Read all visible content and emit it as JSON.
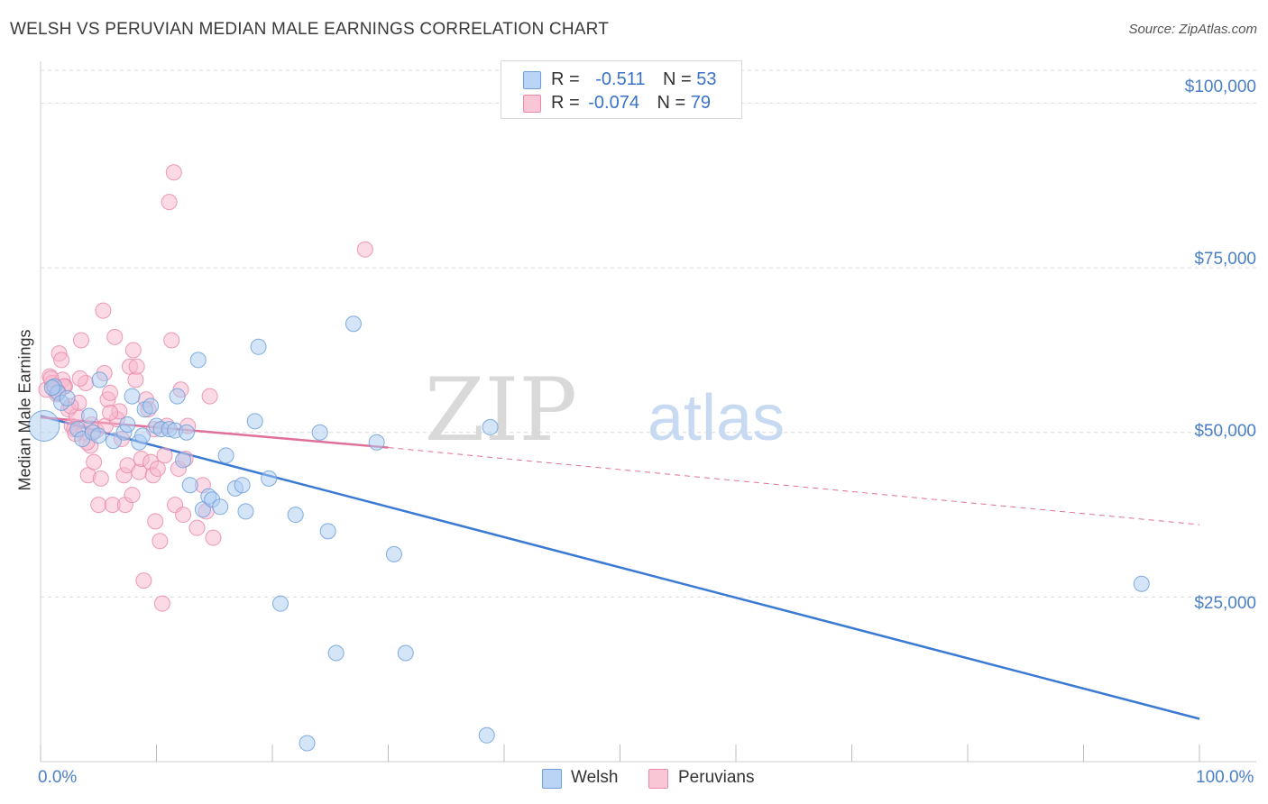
{
  "title": "WELSH VS PERUVIAN MEDIAN MALE EARNINGS CORRELATION CHART",
  "source": "Source: ZipAtlas.com",
  "watermark": {
    "zip": "ZIP",
    "atlas": "atlas"
  },
  "legend": {
    "welsh": {
      "r_label": "R =",
      "r_value": "-0.511",
      "n_label": "N =",
      "n_value": "53"
    },
    "peruvian": {
      "r_label": "R =",
      "r_value": "-0.074",
      "n_label": "N =",
      "n_value": "79"
    }
  },
  "colors": {
    "welsh_fill": "#aaccf2",
    "welsh_stroke": "#6e9fd8",
    "welsh_line": "#3a7ad4",
    "peruvian_fill": "#f7b6cb",
    "peruvian_stroke": "#e98aaa",
    "peruvian_line": "#e0709a",
    "tick_text": "#4a7fc8",
    "grid": "#dcdcdc"
  },
  "chart_data": {
    "type": "scatter",
    "title": "WELSH VS PERUVIAN MEDIAN MALE EARNINGS CORRELATION CHART",
    "xlabel": "",
    "ylabel": "Median Male Earnings",
    "xlim": [
      0,
      100
    ],
    "ylim": [
      0,
      105000
    ],
    "x_tick_labels": [
      "0.0%",
      "100.0%"
    ],
    "y_ticks": [
      25000,
      50000,
      75000,
      100000
    ],
    "y_tick_labels": [
      "$25,000",
      "$50,000",
      "$75,000",
      "$100,000"
    ],
    "grid": true,
    "legend_position": "top-center",
    "series": [
      {
        "name": "Welsh",
        "points": [
          [
            0.3,
            51000
          ],
          [
            1.2,
            57000
          ],
          [
            1.5,
            56000
          ],
          [
            1.8,
            54500
          ],
          [
            2.3,
            55200
          ],
          [
            3.2,
            50500
          ],
          [
            3.6,
            49000
          ],
          [
            4.2,
            52500
          ],
          [
            4.5,
            50000
          ],
          [
            5.0,
            49500
          ],
          [
            5.1,
            58000
          ],
          [
            6.3,
            48700
          ],
          [
            7.2,
            50000
          ],
          [
            7.5,
            51200
          ],
          [
            7.9,
            55500
          ],
          [
            8.5,
            48500
          ],
          [
            8.8,
            49500
          ],
          [
            9.0,
            53500
          ],
          [
            9.5,
            54000
          ],
          [
            10.0,
            51000
          ],
          [
            10.4,
            50500
          ],
          [
            11.1,
            50500
          ],
          [
            11.6,
            50300
          ],
          [
            11.8,
            55500
          ],
          [
            12.3,
            45800
          ],
          [
            12.6,
            50000
          ],
          [
            12.9,
            42000
          ],
          [
            13.6,
            61000
          ],
          [
            14.0,
            38300
          ],
          [
            14.5,
            40300
          ],
          [
            14.8,
            39800
          ],
          [
            15.5,
            38700
          ],
          [
            16.0,
            46500
          ],
          [
            16.8,
            41500
          ],
          [
            17.4,
            42000
          ],
          [
            17.7,
            38000
          ],
          [
            18.5,
            51700
          ],
          [
            18.8,
            63000
          ],
          [
            19.7,
            43000
          ],
          [
            20.7,
            24000
          ],
          [
            22.0,
            37500
          ],
          [
            23.0,
            2800
          ],
          [
            24.1,
            50000
          ],
          [
            24.8,
            35000
          ],
          [
            25.5,
            16500
          ],
          [
            27.0,
            66500
          ],
          [
            29.0,
            48500
          ],
          [
            30.5,
            31500
          ],
          [
            31.5,
            16500
          ],
          [
            38.5,
            4000
          ],
          [
            38.8,
            50800
          ],
          [
            95.0,
            27000
          ],
          [
            1.0,
            56800
          ]
        ]
      },
      {
        "name": "Peruvians",
        "points": [
          [
            0.5,
            56500
          ],
          [
            0.8,
            58500
          ],
          [
            1.0,
            57500
          ],
          [
            1.2,
            56500
          ],
          [
            1.4,
            55800
          ],
          [
            1.6,
            62000
          ],
          [
            1.8,
            61000
          ],
          [
            1.9,
            58000
          ],
          [
            2.1,
            57000
          ],
          [
            2.4,
            53500
          ],
          [
            2.7,
            51000
          ],
          [
            2.9,
            50500
          ],
          [
            3.1,
            52500
          ],
          [
            3.3,
            54500
          ],
          [
            3.5,
            64000
          ],
          [
            3.7,
            50000
          ],
          [
            3.9,
            57500
          ],
          [
            4.1,
            43500
          ],
          [
            4.3,
            48000
          ],
          [
            4.4,
            51200
          ],
          [
            4.6,
            45500
          ],
          [
            4.8,
            50300
          ],
          [
            5.0,
            39000
          ],
          [
            5.2,
            43000
          ],
          [
            5.4,
            68500
          ],
          [
            5.6,
            51000
          ],
          [
            5.8,
            55000
          ],
          [
            6.0,
            56000
          ],
          [
            6.2,
            39000
          ],
          [
            6.4,
            64500
          ],
          [
            6.6,
            52000
          ],
          [
            6.8,
            53200
          ],
          [
            7.0,
            49000
          ],
          [
            7.2,
            43500
          ],
          [
            7.3,
            39000
          ],
          [
            7.5,
            45000
          ],
          [
            7.7,
            60000
          ],
          [
            7.9,
            40500
          ],
          [
            8.0,
            62500
          ],
          [
            8.2,
            58000
          ],
          [
            8.3,
            60000
          ],
          [
            8.5,
            44000
          ],
          [
            8.7,
            46000
          ],
          [
            8.9,
            27500
          ],
          [
            9.1,
            55000
          ],
          [
            9.3,
            53500
          ],
          [
            9.5,
            45500
          ],
          [
            9.7,
            43500
          ],
          [
            9.9,
            36500
          ],
          [
            10.1,
            44500
          ],
          [
            10.3,
            33500
          ],
          [
            10.5,
            24000
          ],
          [
            10.7,
            46500
          ],
          [
            10.9,
            51000
          ],
          [
            11.1,
            85000
          ],
          [
            11.3,
            64000
          ],
          [
            11.5,
            89500
          ],
          [
            11.6,
            39000
          ],
          [
            11.9,
            44500
          ],
          [
            12.1,
            56500
          ],
          [
            12.3,
            37500
          ],
          [
            12.5,
            46000
          ],
          [
            12.7,
            51000
          ],
          [
            13.5,
            35500
          ],
          [
            14.0,
            42000
          ],
          [
            14.3,
            38000
          ],
          [
            14.6,
            55500
          ],
          [
            14.9,
            34000
          ],
          [
            28.0,
            77800
          ],
          [
            2.0,
            57000
          ],
          [
            3.0,
            49800
          ],
          [
            4.0,
            48500
          ],
          [
            6.0,
            53000
          ],
          [
            1.5,
            56200
          ],
          [
            0.9,
            58200
          ],
          [
            2.6,
            54000
          ],
          [
            3.4,
            58200
          ],
          [
            5.5,
            59000
          ],
          [
            9.8,
            50500
          ]
        ]
      }
    ],
    "trend_lines": [
      {
        "series": "Welsh",
        "x": [
          0,
          100
        ],
        "y": [
          52500,
          6500
        ],
        "style": "solid"
      },
      {
        "series": "Peruvians",
        "x": [
          0,
          30
        ],
        "y": [
          52300,
          47700
        ],
        "style": "solid"
      },
      {
        "series": "Peruvians",
        "x": [
          30,
          100
        ],
        "y": [
          47700,
          36000
        ],
        "style": "dashed"
      }
    ]
  },
  "bottom_legend": {
    "welsh": "Welsh",
    "peruvian": "Peruvians"
  }
}
